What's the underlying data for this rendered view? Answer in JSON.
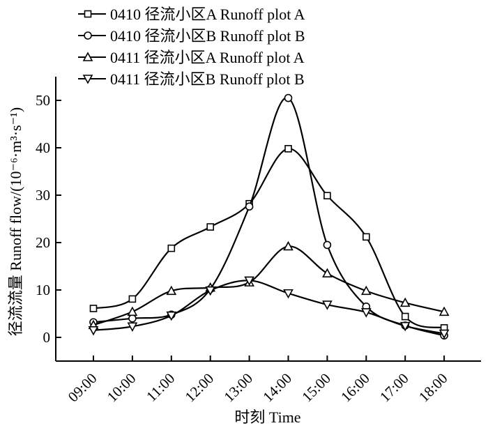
{
  "chart_data": {
    "type": "line",
    "title": "",
    "xlabel": "时刻 Time",
    "ylabel": "径流流量 Runoff flow/(10⁻⁶·m³·s⁻¹)",
    "categories": [
      "09:00",
      "10:00",
      "11:00",
      "12:00",
      "13:00",
      "14:00",
      "15:00",
      "16:00",
      "17:00",
      "18:00"
    ],
    "ylim": [
      -5,
      55
    ],
    "yticks": [
      0,
      10,
      20,
      30,
      40,
      50
    ],
    "grid": false,
    "legend_position": "top-left",
    "series": [
      {
        "name": "0410 径流小区A Runoff plot A",
        "marker": "square",
        "values": [
          6.1,
          8.1,
          18.8,
          23.3,
          28.2,
          39.8,
          29.9,
          21.2,
          4.4,
          2.0
        ]
      },
      {
        "name": "0410 径流小区B Runoff plot B",
        "marker": "circle",
        "values": [
          3.2,
          4.0,
          4.8,
          10.2,
          27.6,
          50.5,
          19.5,
          6.5,
          2.5,
          0.4
        ]
      },
      {
        "name": "0411 径流小区A Runoff plot A",
        "marker": "triangle-up",
        "values": [
          2.6,
          5.4,
          9.8,
          10.5,
          11.6,
          19.2,
          13.5,
          9.8,
          7.3,
          5.4
        ]
      },
      {
        "name": "0411 径流小区B Runoff plot B",
        "marker": "triangle-down",
        "values": [
          1.5,
          2.3,
          4.6,
          9.9,
          12.0,
          9.3,
          6.9,
          5.3,
          2.4,
          0.8
        ]
      }
    ]
  }
}
